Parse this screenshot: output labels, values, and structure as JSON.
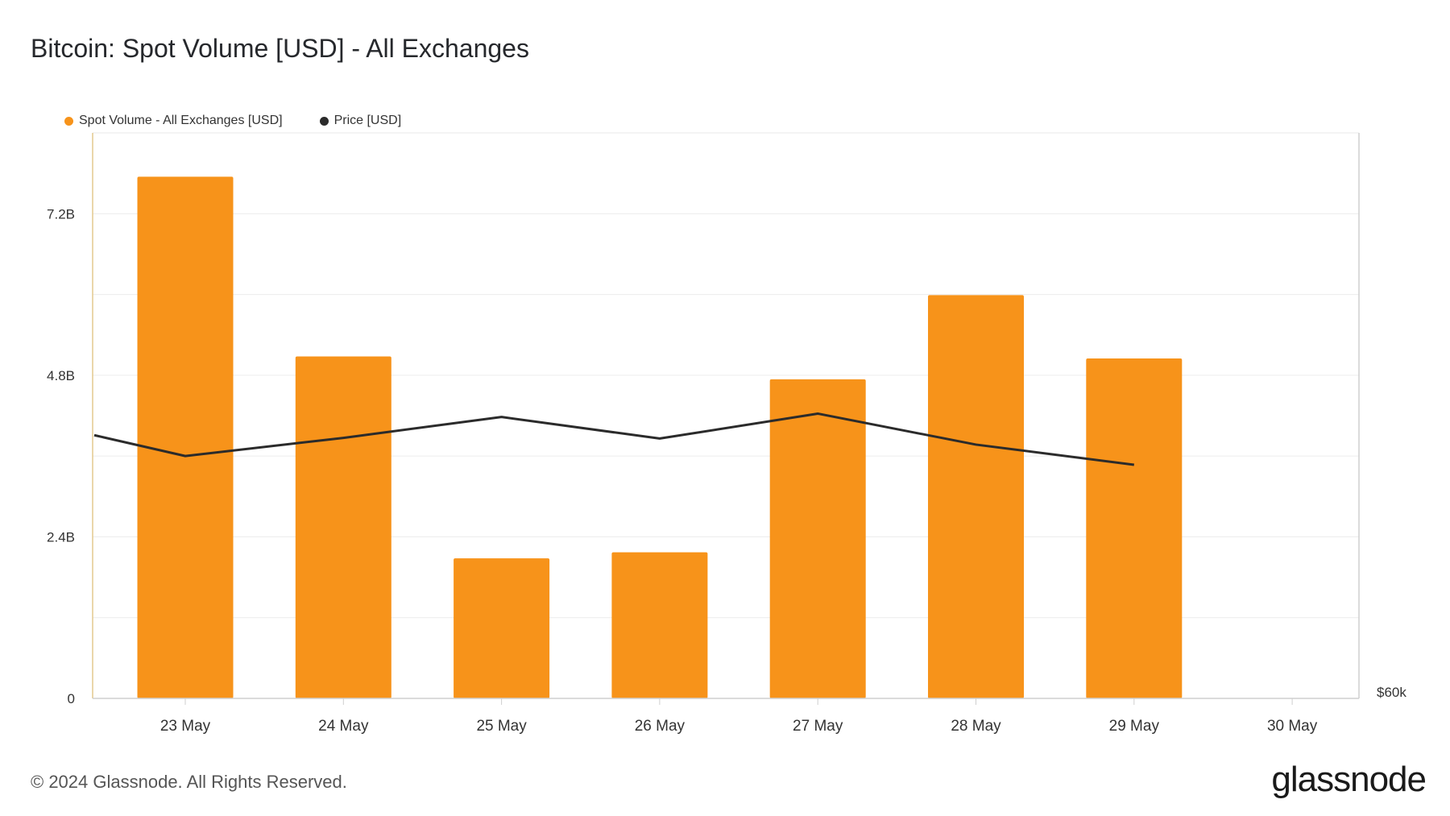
{
  "chart_data": {
    "type": "bar",
    "title": "Bitcoin: Spot Volume [USD] - All Exchanges",
    "categories": [
      "23 May",
      "24 May",
      "25 May",
      "26 May",
      "27 May",
      "28 May",
      "29 May",
      "30 May"
    ],
    "series": [
      {
        "name": "Spot Volume - All Exchanges [USD]",
        "type": "bar",
        "axis": "left",
        "color": "#f7931a",
        "values": [
          7.75,
          5.08,
          2.08,
          2.17,
          4.74,
          5.99,
          5.05,
          null
        ],
        "unit": "B USD"
      },
      {
        "name": "Price [USD]",
        "type": "line",
        "axis": "right",
        "color": "#2b2b2b",
        "line_start": 3.91,
        "values": [
          3.6,
          3.87,
          4.18,
          3.86,
          4.23,
          3.77,
          3.47,
          null
        ],
        "note": "plotted against left-scale equivalent; right axis only shows $60k baseline"
      }
    ],
    "y_ticks": [
      {
        "value": 0,
        "label": "0"
      },
      {
        "value": 2.4,
        "label": "2.4B"
      },
      {
        "value": 4.8,
        "label": "4.8B"
      },
      {
        "value": 7.2,
        "label": "7.2B"
      }
    ],
    "y_gridlines": [
      1.2,
      2.4,
      3.6,
      4.8,
      6.0,
      7.2
    ],
    "ylim": [
      0,
      8.4
    ],
    "right_axis_label": "$60k",
    "legend_position": "top-left",
    "grid": true
  },
  "footer": {
    "copyright": "© 2024 Glassnode. All Rights Reserved.",
    "brand": "glassnode"
  }
}
